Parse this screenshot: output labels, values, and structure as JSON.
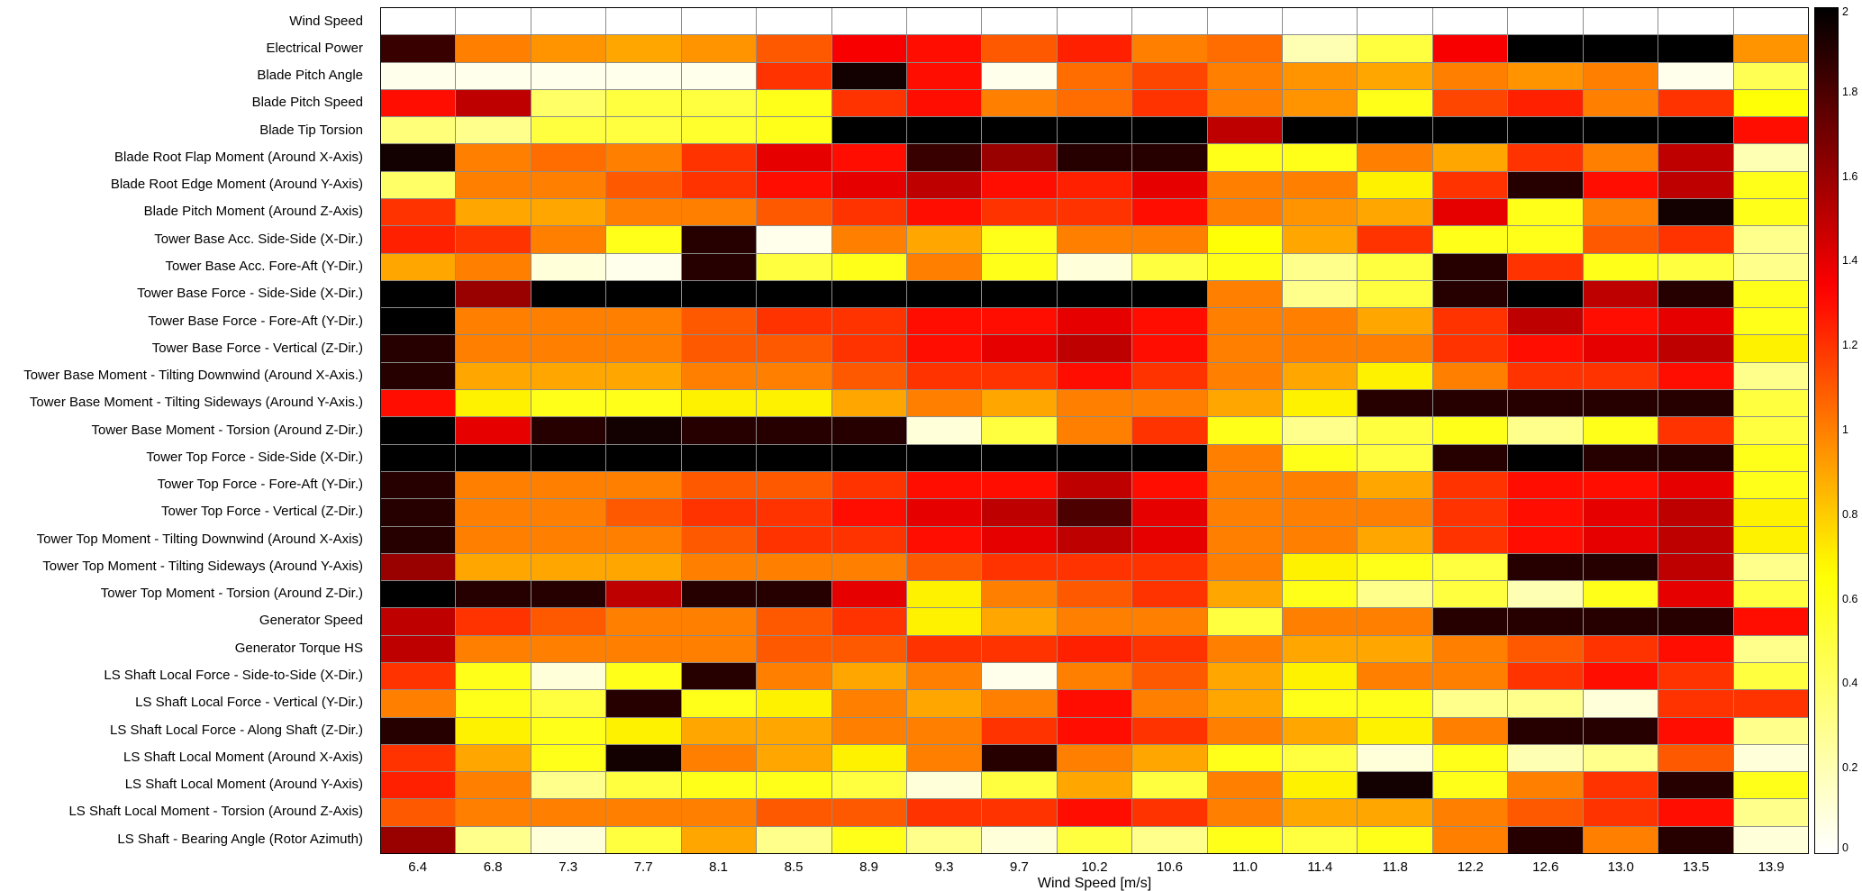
{
  "chart_data": {
    "type": "heatmap",
    "title": "",
    "xlabel": "Wind Speed [m/s]",
    "ylabel": "",
    "colormap": "hot_reversed",
    "vmin": 0,
    "vmax": 2,
    "legend_position": "colorbar-right",
    "grid": true,
    "x_categories": [
      "6.4",
      "6.8",
      "7.3",
      "7.7",
      "8.1",
      "8.5",
      "8.9",
      "9.3",
      "9.7",
      "10.2",
      "10.6",
      "11.0",
      "11.4",
      "11.8",
      "12.2",
      "12.6",
      "13.0",
      "13.5",
      "13.9"
    ],
    "y_categories": [
      "Wind Speed",
      "Electrical Power",
      "Blade Pitch Angle",
      "Blade Pitch Speed",
      "Blade Tip Torsion",
      "Blade Root Flap Moment (Around X-Axis)",
      "Blade Root Edge Moment (Around Y-Axis)",
      "Blade Pitch Moment (Around Z-Axis)",
      "Tower Base Acc. Side-Side (X-Dir.)",
      "Tower Base Acc. Fore-Aft (Y-Dir.)",
      "Tower Base Force - Side-Side (X-Dir.)",
      "Tower Base Force - Fore-Aft (Y-Dir.)",
      "Tower Base Force - Vertical (Z-Dir.)",
      "Tower Base Moment - Tilting Downwind (Around X-Axis.)",
      "Tower Base Moment - Tilting Sideways (Around Y-Axis.)",
      "Tower Base Moment - Torsion (Around Z-Dir.)",
      "Tower Top Force - Side-Side (X-Dir.)",
      "Tower Top Force - Fore-Aft (Y-Dir.)",
      "Tower Top Force - Vertical (Z-Dir.)",
      "Tower Top Moment - Tilting Downwind (Around X-Axis)",
      "Tower Top Moment - Tilting Sideways (Around Y-Axis)",
      "Tower Top Moment - Torsion (Around Z-Dir.)",
      "Generator Speed",
      "Generator Torque HS",
      "LS Shaft Local Force - Side-to-Side (X-Dir.)",
      "LS Shaft Local Force - Vertical (Y-Dir.)",
      "LS Shaft Local Force - Along Shaft (Z-Dir.)",
      "LS Shaft Local Moment (Around X-Axis)",
      "LS Shaft Local Moment (Around Y-Axis)",
      "LS Shaft Local Moment - Torsion (Around Z-Axis)",
      "LS Shaft - Bearing Angle (Rotor Azimuth)"
    ],
    "values": [
      [
        0,
        0,
        0,
        0,
        0,
        0,
        0,
        0,
        0,
        0,
        0,
        0,
        0,
        0,
        0,
        0,
        0,
        0,
        0
      ],
      [
        1.85,
        1.0,
        0.95,
        0.9,
        0.95,
        1.1,
        1.35,
        1.3,
        1.1,
        1.25,
        1.0,
        1.05,
        0.2,
        0.5,
        1.35,
        2,
        2,
        2,
        0.95
      ],
      [
        0.05,
        0.05,
        0.05,
        0.05,
        0.05,
        1.2,
        1.95,
        1.3,
        0.05,
        1.05,
        1.15,
        1.0,
        0.95,
        0.9,
        1.0,
        0.95,
        1.0,
        0.05,
        0.45
      ],
      [
        1.3,
        1.5,
        0.4,
        0.5,
        0.5,
        0.6,
        1.2,
        1.3,
        1.0,
        1.05,
        1.2,
        1.0,
        0.95,
        0.6,
        1.15,
        1.25,
        1.0,
        1.2,
        0.65
      ],
      [
        0.35,
        0.3,
        0.5,
        0.5,
        0.55,
        0.6,
        2,
        2,
        2,
        2,
        2,
        1.5,
        2,
        2,
        2,
        2,
        2,
        2,
        1.3
      ],
      [
        1.95,
        1.0,
        1.05,
        1.0,
        1.2,
        1.4,
        1.3,
        1.85,
        1.6,
        1.9,
        1.9,
        0.6,
        0.6,
        1.0,
        0.9,
        1.2,
        1.0,
        1.5,
        0.2
      ],
      [
        0.4,
        1.0,
        1.0,
        1.1,
        1.2,
        1.3,
        1.4,
        1.5,
        1.3,
        1.25,
        1.4,
        1.0,
        1.0,
        0.7,
        1.2,
        1.9,
        1.3,
        1.5,
        0.6
      ],
      [
        1.2,
        0.9,
        0.9,
        1.0,
        1.0,
        1.1,
        1.2,
        1.3,
        1.2,
        1.2,
        1.3,
        1.0,
        0.95,
        0.9,
        1.4,
        0.6,
        1.0,
        1.95,
        0.6
      ],
      [
        1.25,
        1.2,
        1.0,
        0.6,
        1.9,
        0.05,
        1.0,
        0.9,
        0.6,
        1.0,
        1.0,
        0.65,
        0.9,
        1.2,
        0.6,
        0.6,
        1.1,
        1.2,
        0.3
      ],
      [
        0.9,
        1.0,
        0.1,
        0.05,
        1.9,
        0.5,
        0.6,
        1.0,
        0.6,
        0.1,
        0.5,
        0.6,
        0.3,
        0.5,
        1.9,
        1.2,
        0.6,
        0.5,
        0.3
      ],
      [
        2,
        1.6,
        2,
        2,
        2,
        2,
        2,
        2,
        2,
        2,
        2,
        1.0,
        0.3,
        0.5,
        1.9,
        2,
        1.5,
        1.9,
        0.6
      ],
      [
        2,
        1.0,
        1.0,
        1.0,
        1.1,
        1.2,
        1.2,
        1.3,
        1.3,
        1.4,
        1.3,
        1.0,
        1.0,
        0.9,
        1.2,
        1.5,
        1.3,
        1.4,
        0.6
      ],
      [
        1.9,
        1.0,
        1.0,
        1.0,
        1.1,
        1.1,
        1.2,
        1.3,
        1.4,
        1.5,
        1.3,
        1.0,
        1.0,
        1.0,
        1.2,
        1.3,
        1.4,
        1.5,
        0.7
      ],
      [
        1.9,
        0.9,
        0.9,
        0.9,
        1.0,
        1.0,
        1.1,
        1.2,
        1.2,
        1.3,
        1.2,
        1.0,
        0.9,
        0.7,
        1.0,
        1.2,
        1.2,
        1.3,
        0.3
      ],
      [
        1.3,
        0.7,
        0.6,
        0.6,
        0.7,
        0.7,
        0.9,
        1.0,
        0.9,
        1.0,
        1.0,
        0.9,
        0.7,
        1.9,
        1.9,
        1.9,
        1.9,
        1.9,
        0.5
      ],
      [
        2,
        1.4,
        1.9,
        1.95,
        1.9,
        1.9,
        1.9,
        0.1,
        0.5,
        1.0,
        1.2,
        0.6,
        0.3,
        0.5,
        0.6,
        0.3,
        0.6,
        1.2,
        0.5
      ],
      [
        2,
        2,
        2,
        2,
        2,
        2,
        2,
        2,
        2,
        2,
        2,
        1.0,
        0.6,
        0.5,
        1.9,
        2,
        1.9,
        1.9,
        0.6
      ],
      [
        1.9,
        1.0,
        1.0,
        1.0,
        1.1,
        1.1,
        1.2,
        1.3,
        1.3,
        1.5,
        1.3,
        1.0,
        1.0,
        0.9,
        1.2,
        1.3,
        1.3,
        1.4,
        0.6
      ],
      [
        1.9,
        1.0,
        1.0,
        1.1,
        1.2,
        1.2,
        1.3,
        1.4,
        1.5,
        1.8,
        1.4,
        1.0,
        1.0,
        1.0,
        1.2,
        1.3,
        1.4,
        1.5,
        0.7
      ],
      [
        1.9,
        1.0,
        1.0,
        1.0,
        1.1,
        1.2,
        1.2,
        1.3,
        1.4,
        1.5,
        1.4,
        1.0,
        1.0,
        0.9,
        1.2,
        1.3,
        1.4,
        1.5,
        0.7
      ],
      [
        1.6,
        0.9,
        0.9,
        0.9,
        1.0,
        1.0,
        1.0,
        1.1,
        1.2,
        1.2,
        1.2,
        1.0,
        0.7,
        0.6,
        0.5,
        1.9,
        1.9,
        1.5,
        0.3
      ],
      [
        2,
        1.9,
        1.9,
        1.5,
        1.9,
        1.9,
        1.4,
        0.7,
        1.0,
        1.1,
        1.2,
        0.9,
        0.6,
        0.3,
        0.5,
        0.2,
        0.6,
        1.4,
        0.5
      ],
      [
        1.5,
        1.2,
        1.1,
        1.0,
        1.0,
        1.1,
        1.2,
        0.7,
        0.9,
        1.0,
        1.0,
        0.5,
        1.0,
        1.0,
        1.9,
        1.9,
        1.9,
        1.9,
        1.3
      ],
      [
        1.5,
        1.0,
        1.0,
        1.0,
        1.0,
        1.1,
        1.1,
        1.2,
        1.2,
        1.25,
        1.2,
        1.0,
        0.9,
        0.9,
        1.0,
        1.1,
        1.2,
        1.3,
        0.3
      ],
      [
        1.2,
        0.6,
        0.1,
        0.6,
        1.9,
        1.0,
        0.9,
        1.0,
        0.05,
        1.0,
        1.1,
        0.9,
        0.7,
        1.0,
        1.0,
        1.2,
        1.3,
        1.2,
        0.5
      ],
      [
        1.0,
        0.6,
        0.5,
        1.9,
        0.6,
        0.7,
        1.0,
        0.9,
        1.0,
        1.3,
        1.0,
        0.9,
        0.6,
        0.6,
        0.3,
        0.3,
        0.1,
        1.2,
        1.2
      ],
      [
        1.9,
        0.7,
        0.6,
        0.7,
        0.9,
        0.9,
        1.0,
        1.0,
        1.2,
        1.3,
        1.2,
        1.0,
        0.9,
        0.7,
        1.0,
        1.9,
        1.9,
        1.3,
        0.3
      ],
      [
        1.2,
        0.9,
        0.6,
        1.95,
        1.0,
        0.9,
        0.7,
        1.0,
        1.9,
        1.0,
        0.9,
        0.6,
        0.5,
        0.1,
        0.6,
        0.2,
        0.3,
        1.1,
        0.1
      ],
      [
        1.25,
        1.0,
        0.3,
        0.5,
        0.6,
        0.6,
        0.5,
        0.1,
        0.5,
        0.9,
        0.5,
        1.0,
        0.7,
        1.95,
        0.6,
        1.0,
        1.2,
        1.9,
        0.6
      ],
      [
        1.1,
        1.0,
        1.0,
        1.0,
        1.0,
        1.1,
        1.1,
        1.2,
        1.2,
        1.3,
        1.2,
        1.0,
        0.9,
        0.9,
        1.0,
        1.1,
        1.2,
        1.3,
        0.3
      ],
      [
        1.6,
        0.3,
        0.1,
        0.5,
        0.9,
        0.3,
        0.6,
        0.3,
        0.1,
        0.5,
        0.3,
        0.6,
        0.5,
        0.6,
        1.0,
        1.9,
        1.0,
        1.9,
        0.1
      ]
    ],
    "colorbar_ticks": [
      {
        "value": 2,
        "label": "2"
      },
      {
        "value": 1.8,
        "label": "1.8"
      },
      {
        "value": 1.6,
        "label": "1.6"
      },
      {
        "value": 1.4,
        "label": "1.4"
      },
      {
        "value": 1.2,
        "label": "1.2"
      },
      {
        "value": 1,
        "label": "1"
      },
      {
        "value": 0.8,
        "label": "0.8"
      },
      {
        "value": 0.6,
        "label": "0.6"
      },
      {
        "value": 0.4,
        "label": "0.4"
      },
      {
        "value": 0.2,
        "label": "0.2"
      },
      {
        "value": 0,
        "label": "0"
      }
    ]
  }
}
